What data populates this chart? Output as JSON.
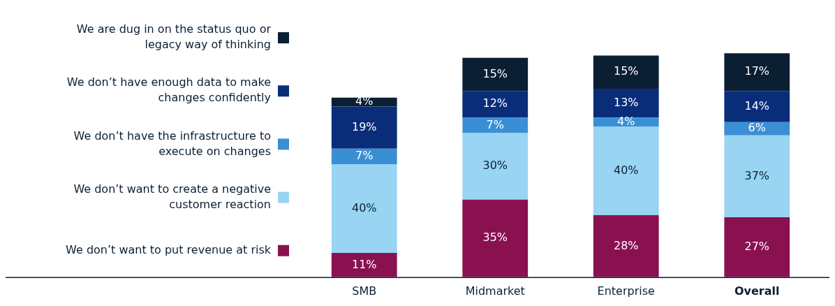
{
  "chart_data": {
    "type": "bar",
    "stacked": true,
    "legend": "left",
    "categories": [
      "SMB",
      "Midmarket",
      "Enterprise",
      "Overall"
    ],
    "series": [
      {
        "name": "We don’t want to put revenue at risk",
        "color": "#8a1150",
        "values": [
          11,
          35,
          28,
          27
        ],
        "value_labels": [
          "11%",
          "35%",
          "28%",
          "27%"
        ]
      },
      {
        "name": "We don’t want to create a negative customer reaction",
        "color": "#99d4f2",
        "values": [
          40,
          30,
          40,
          37
        ],
        "value_labels": [
          "40%",
          "30%",
          "40%",
          "37%"
        ]
      },
      {
        "name": "We don’t have the infrastructure to execute on changes",
        "color": "#3a8fd4",
        "values": [
          7,
          7,
          4,
          6
        ],
        "value_labels": [
          "7%",
          "7%",
          "4%",
          "6%"
        ]
      },
      {
        "name": "We don’t have enough data to make changes confidently",
        "color": "#0a2d7a",
        "values": [
          19,
          12,
          13,
          14
        ],
        "value_labels": [
          "19%",
          "12%",
          "13%",
          "14%"
        ]
      },
      {
        "name": "We are dug in on the status quo or legacy way of thinking",
        "color": "#0b1f33",
        "values": [
          4,
          15,
          15,
          17
        ],
        "value_labels": [
          "4%",
          "15%",
          "15%",
          "17%"
        ]
      }
    ]
  }
}
